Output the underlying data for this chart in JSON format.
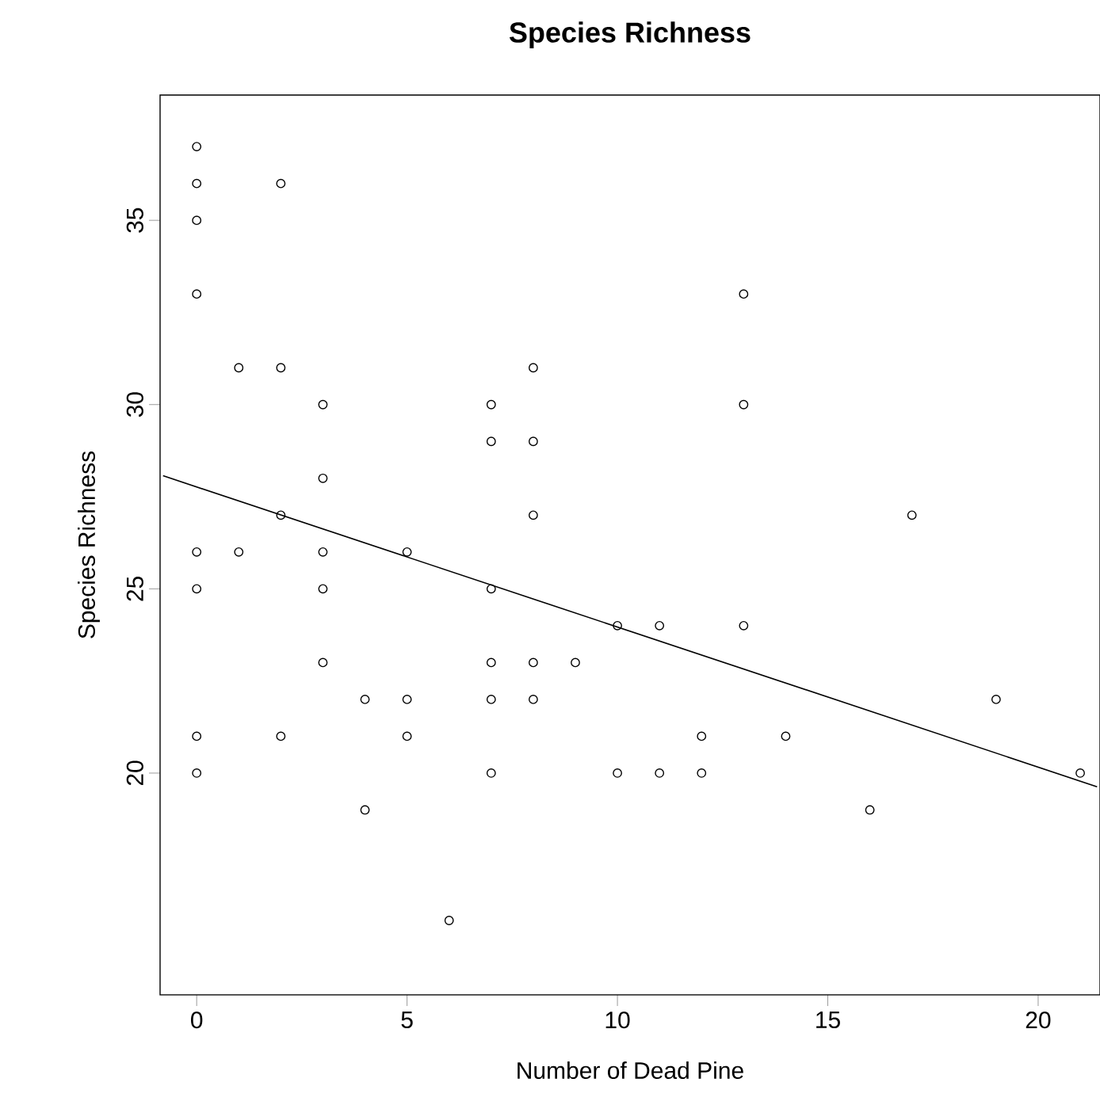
{
  "chart_data": {
    "type": "scatter",
    "title": "Species Richness",
    "xlabel": "Number of Dead Pine",
    "ylabel": "Species Richness",
    "xlim": [
      -0.87,
      21.47
    ],
    "ylim": [
      13.98,
      38.4
    ],
    "xticks": [
      0,
      5,
      10,
      15,
      20
    ],
    "yticks": [
      20,
      25,
      30,
      35
    ],
    "grid": false,
    "marker": "circle",
    "series": [
      {
        "color": "#000000",
        "x": [
          0,
          0,
          0,
          0,
          0,
          0,
          0,
          0,
          1,
          1,
          2,
          2,
          2,
          2,
          3,
          3,
          3,
          3,
          3,
          4,
          4,
          5,
          5,
          5,
          6,
          7,
          7,
          7,
          7,
          7,
          7,
          8,
          8,
          8,
          8,
          8,
          9,
          10,
          10,
          11,
          11,
          12,
          12,
          13,
          13,
          13,
          14,
          16,
          17,
          19,
          21
        ],
        "values": [
          37,
          36,
          35,
          33,
          26,
          25,
          21,
          20,
          31,
          26,
          36,
          31,
          27,
          21,
          30,
          28,
          26,
          25,
          23,
          22,
          19,
          26,
          22,
          21,
          16,
          30,
          29,
          25,
          23,
          22,
          20,
          31,
          29,
          27,
          23,
          22,
          23,
          24,
          20,
          24,
          20,
          21,
          20,
          33,
          30,
          24,
          21,
          19,
          27,
          22,
          20
        ]
      },
      {
        "type": "line",
        "color": "#000000",
        "marker": "none",
        "x": [
          -0.8,
          21.4
        ],
        "values": [
          28.07,
          19.63
        ]
      }
    ]
  }
}
